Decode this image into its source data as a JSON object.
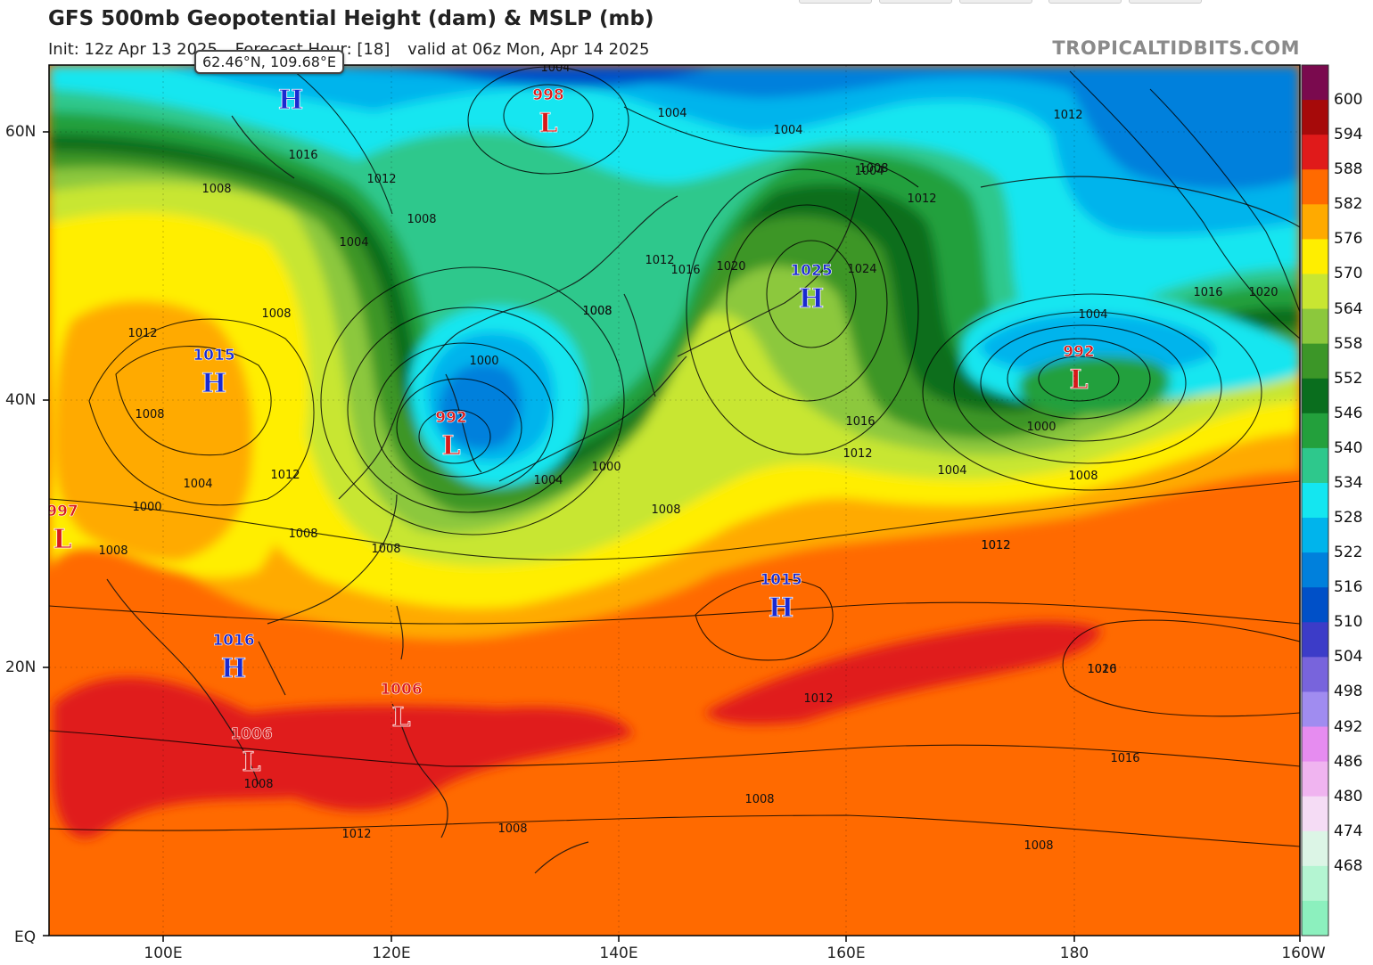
{
  "header": {
    "title": "GFS 500mb Geopotential Height (dam) & MSLP (mb)",
    "init": "Init: 12z Apr 13 2025",
    "forecast_hour": "Forecast Hour: [18]",
    "valid": "valid at 06z Mon, Apr 14 2025",
    "brand": "TROPICALTIDBITS.COM"
  },
  "cursor_readout": "62.46°N, 109.68°E",
  "axes": {
    "lat_ticks": [
      "60N",
      "40N",
      "20N",
      "EQ"
    ],
    "lon_ticks": [
      "100E",
      "120E",
      "140E",
      "160E",
      "180",
      "160W"
    ]
  },
  "colorbar": {
    "labels": [
      "600",
      "594",
      "588",
      "582",
      "576",
      "570",
      "564",
      "558",
      "552",
      "546",
      "540",
      "534",
      "528",
      "522",
      "516",
      "510",
      "504",
      "498",
      "492",
      "486",
      "480",
      "474",
      "468"
    ],
    "colors": [
      "#7a0a4e",
      "#a60a0a",
      "#e01a1a",
      "#ff6a00",
      "#ffaa00",
      "#ffee00",
      "#c8e632",
      "#8cc83c",
      "#3c9628",
      "#0a6e1e",
      "#23a03c",
      "#2ec88c",
      "#14e6f0",
      "#00b4ec",
      "#0080dc",
      "#0050c8",
      "#3c3cc8",
      "#7864dc",
      "#a08cf0",
      "#e68cf0",
      "#f0b4f0",
      "#f5dcf5",
      "#dcf5e6",
      "#b4f5d2",
      "#8cf0be"
    ]
  },
  "centers": [
    {
      "type": "H",
      "value": "",
      "color": "#1a2ad0"
    },
    {
      "type": "L",
      "value": "998",
      "color": "#d81a1a"
    },
    {
      "type": "H",
      "value": "1015",
      "color": "#1a2ad0"
    },
    {
      "type": "L",
      "value": "992",
      "color": "#d81a1a"
    },
    {
      "type": "L",
      "value": "997",
      "color": "#d81a1a"
    },
    {
      "type": "H",
      "value": "1025",
      "color": "#1a2ad0"
    },
    {
      "type": "L",
      "value": "992",
      "color": "#d81a1a"
    },
    {
      "type": "H",
      "value": "1015",
      "color": "#1a2ad0"
    },
    {
      "type": "H",
      "value": "1016",
      "color": "#1a2ad0"
    },
    {
      "type": "L",
      "value": "1006",
      "color": "#d81a1a"
    },
    {
      "type": "L",
      "value": "1006",
      "color": "#d81a1a"
    }
  ],
  "isobar_labels": [
    "1004",
    "1004",
    "1004",
    "1012",
    "1016",
    "1008",
    "1012",
    "1008",
    "1004",
    "1008",
    "1008",
    "1012",
    "1004",
    "1000",
    "1008",
    "1012",
    "1012",
    "1008",
    "1000",
    "1004",
    "1008",
    "1000",
    "1004",
    "1012",
    "1016",
    "1020",
    "1024",
    "1008",
    "1016",
    "1020",
    "1016",
    "1012",
    "1004",
    "1000",
    "1008",
    "1004",
    "1016",
    "1020",
    "1012",
    "1008",
    "1016",
    "1012",
    "1012",
    "1008",
    "1008",
    "1008",
    "1008",
    "1012",
    "1008",
    "1008"
  ]
}
